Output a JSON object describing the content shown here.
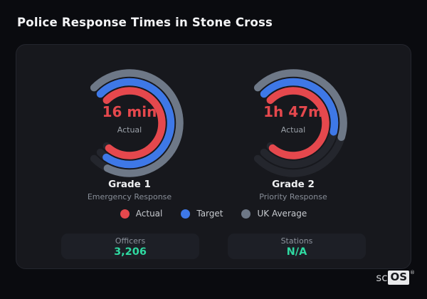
{
  "header": {
    "title": "Police Response Times in Stone Cross"
  },
  "colors": {
    "page_background": "#0a0b0f",
    "card_background": "#17181d",
    "actual": "#e5484d",
    "target": "#3e78e7",
    "uk_average": "#6e7887",
    "track": "#24262d",
    "stat_value_green": "#2fd9a1"
  },
  "chart_data": {
    "type": "radial-bar",
    "title": "Police Response Times in Stone Cross",
    "legend_position": "bottom",
    "track_color": "#24262d",
    "legend": [
      {
        "label": "Actual",
        "color": "#e5484d"
      },
      {
        "label": "Target",
        "color": "#3e78e7"
      },
      {
        "label": "UK Average",
        "color": "#6e7887"
      }
    ],
    "gauges": [
      {
        "title": "Grade 1",
        "subtitle": "Emergency Response",
        "center_value": "16 min",
        "center_caption": "Actual",
        "start_angle_deg": -45,
        "range_deg": 270,
        "rings": [
          {
            "series": "UK Average",
            "color": "#6e7887",
            "fraction": 0.93
          },
          {
            "series": "Target",
            "color": "#3e78e7",
            "fraction": 0.96
          },
          {
            "series": "Actual",
            "color": "#e5484d",
            "fraction": 0.98
          }
        ]
      },
      {
        "title": "Grade 2",
        "subtitle": "Priority Response",
        "center_value": "1h 47m",
        "center_caption": "Actual",
        "start_angle_deg": -45,
        "range_deg": 270,
        "rings": [
          {
            "series": "UK Average",
            "color": "#6e7887",
            "fraction": 0.56
          },
          {
            "series": "Target",
            "color": "#3e78e7",
            "fraction": 0.545
          },
          {
            "series": "Actual",
            "color": "#e5484d",
            "fraction": 0.98
          }
        ]
      }
    ]
  },
  "stats": [
    {
      "label": "Officers",
      "value": "3,206"
    },
    {
      "label": "Stations",
      "value": "N/A"
    }
  ],
  "logo": {
    "prefix": "sc",
    "highlight": "OS",
    "registered_mark": "®"
  }
}
